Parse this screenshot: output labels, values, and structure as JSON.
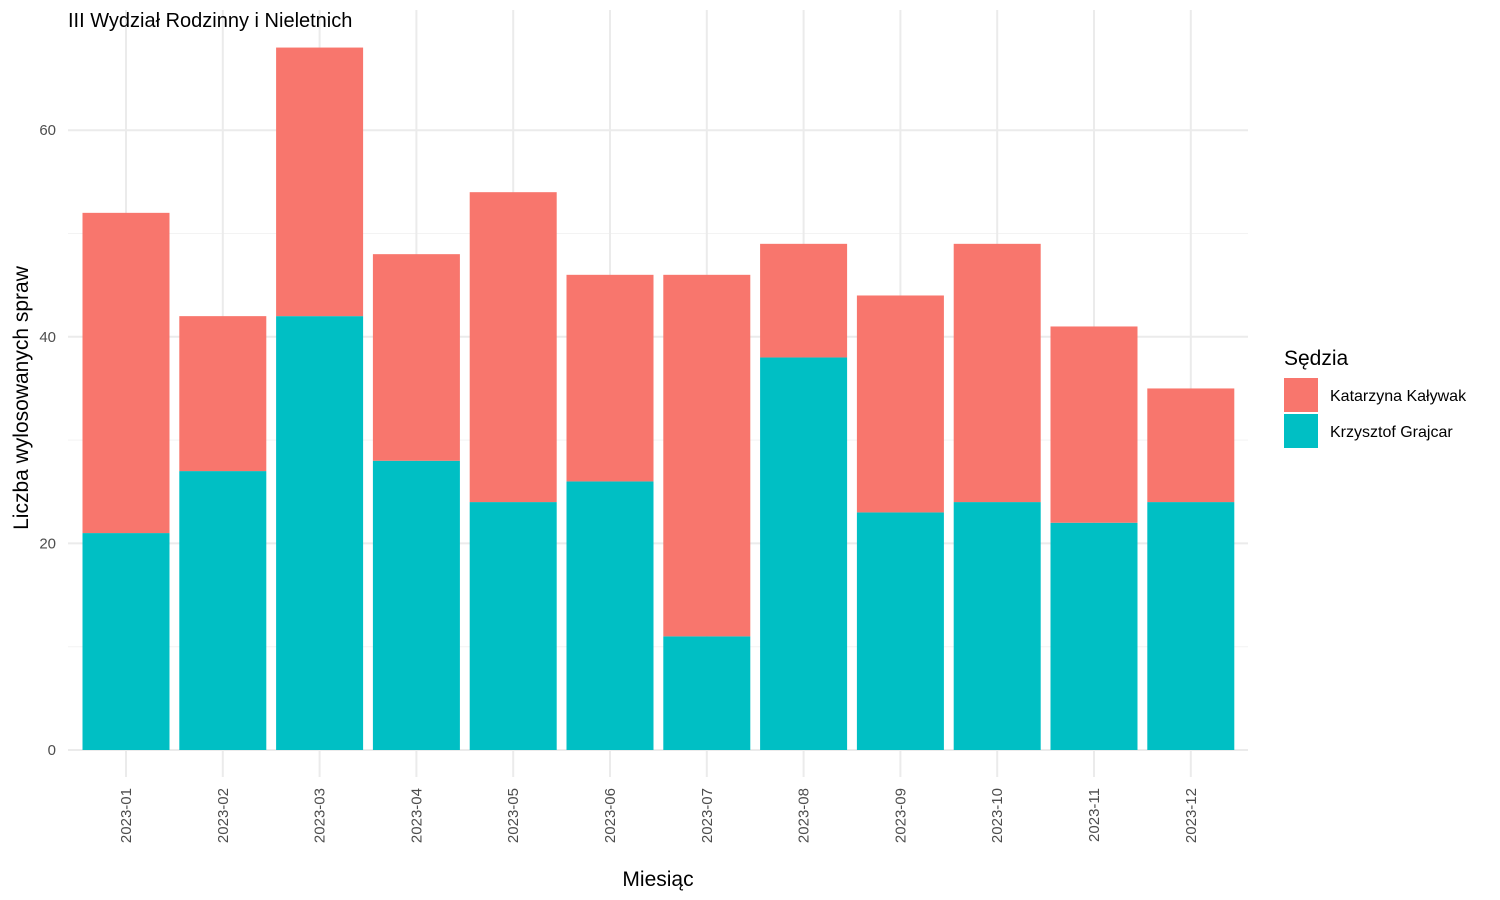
{
  "chart_data": {
    "type": "bar",
    "stacked": true,
    "title": "III Wydział Rodzinny i Nieletnich",
    "xlabel": "Miesiąc",
    "ylabel": "Liczba wylosowanych spraw",
    "ylim": [
      0,
      68
    ],
    "yticks": [
      0,
      20,
      40,
      60
    ],
    "grid": true,
    "legend_placement": "right",
    "legend_title": "Sędzia",
    "categories": [
      "2023-01",
      "2023-02",
      "2023-03",
      "2023-04",
      "2023-05",
      "2023-06",
      "2023-07",
      "2023-08",
      "2023-09",
      "2023-10",
      "2023-11",
      "2023-12"
    ],
    "series": [
      {
        "name": "Katarzyna Kaływak",
        "color": "#F8766D",
        "values": [
          31,
          15,
          26,
          20,
          30,
          20,
          35,
          11,
          21,
          25,
          19,
          11
        ]
      },
      {
        "name": "Krzysztof Grajcar",
        "color": "#00BFC4",
        "values": [
          21,
          27,
          42,
          28,
          24,
          26,
          11,
          38,
          23,
          24,
          22,
          24
        ]
      }
    ]
  }
}
